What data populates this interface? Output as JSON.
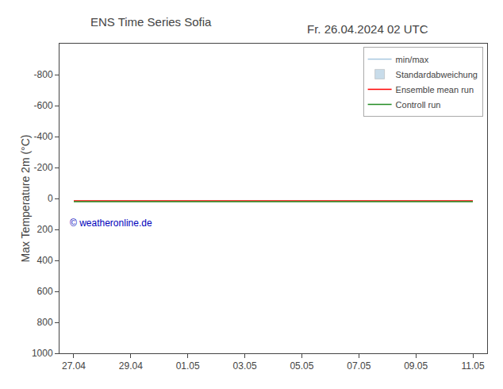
{
  "chart_data": {
    "type": "line",
    "title": "ENS Time Series Sofia",
    "subtitle": "Fr. 26.04.2024 02 UTC",
    "y_label": "Max Temperature 2m (°C)",
    "categories": [
      "27.04",
      null,
      "29.04",
      null,
      "01.05",
      null,
      "03.05",
      null,
      "05.05",
      null,
      "07.05",
      null,
      "09.05",
      null,
      "11.05"
    ],
    "series": [
      {
        "name": "min/max",
        "color": "#a8c8e0",
        "type": "line",
        "values": [
          null,
          null,
          null,
          null,
          null,
          null,
          null,
          null,
          null,
          null,
          null,
          null,
          null,
          null,
          null
        ]
      },
      {
        "name": "Standardabweichung",
        "color": "#c8dcea",
        "type": "bar",
        "values": [
          null,
          null,
          null,
          null,
          null,
          null,
          null,
          null,
          null,
          null,
          null,
          null,
          null,
          null,
          null
        ]
      },
      {
        "name": "Ensemble mean run",
        "color": "#ff0000",
        "type": "line",
        "values": [
          15,
          15,
          15,
          15,
          15,
          15,
          15,
          15,
          15,
          15,
          15,
          15,
          15,
          15,
          15
        ]
      },
      {
        "name": "Controll run",
        "color": "#228B22",
        "type": "line",
        "values": [
          20,
          20,
          20,
          20,
          20,
          20,
          20,
          20,
          20,
          20,
          20,
          20,
          20,
          20,
          20
        ]
      }
    ],
    "ylim": [
      1000,
      -1000
    ],
    "yticks": [
      -800,
      -600,
      -400,
      -200,
      0,
      200,
      400,
      600,
      800,
      1000
    ],
    "grid": false,
    "legend": "upper right",
    "annotations": [
      {
        "text": "© weatheronline.de",
        "color": "#0000bb"
      }
    ]
  }
}
